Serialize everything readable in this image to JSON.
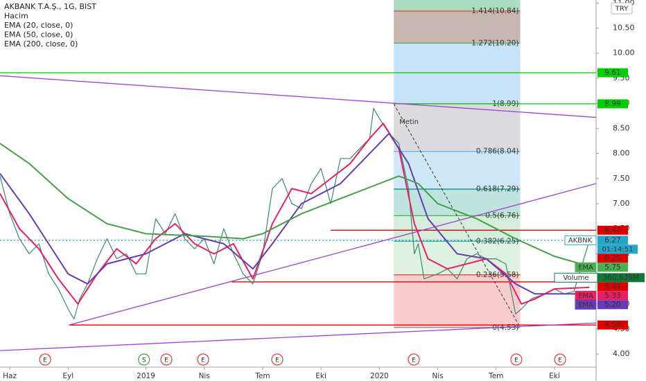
{
  "chart_data": {
    "type": "line",
    "legend": [
      "AKBANK T.A.Ş., 1G, BIST",
      "Hacim",
      "EMA (20, close, 0)",
      "EMA (50, close, 0)",
      "EMA (200, close, 0)"
    ],
    "currency": "TRY",
    "annotation": "Metin",
    "xlim": [
      -0.5,
      30.14
    ],
    "xticks": [
      {
        "value": 0,
        "label": "Haz"
      },
      {
        "value": 3,
        "label": "Eyl"
      },
      {
        "value": 7,
        "label": "2019"
      },
      {
        "value": 10,
        "label": "Nis"
      },
      {
        "value": 13,
        "label": "Tem"
      },
      {
        "value": 16,
        "label": "Eki"
      },
      {
        "value": 19,
        "label": "2020"
      },
      {
        "value": 22,
        "label": "Nis"
      },
      {
        "value": 25,
        "label": "Tem"
      },
      {
        "value": 28,
        "label": "Eki"
      }
    ],
    "ylim": [
      3.74,
      11.06
    ],
    "yticks": [
      {
        "value": 4,
        "label": "4.00"
      },
      {
        "value": 4.5,
        "label": "4.50"
      },
      {
        "value": 5,
        "label": "5.00"
      },
      {
        "value": 5.5,
        "label": "5.50"
      },
      {
        "value": 6,
        "label": "6.00"
      },
      {
        "value": 6.5,
        "label": "6.50"
      },
      {
        "value": 7,
        "label": "7.00"
      },
      {
        "value": 7.5,
        "label": "7.50"
      },
      {
        "value": 8,
        "label": "8.00"
      },
      {
        "value": 8.5,
        "label": "8.50"
      },
      {
        "value": 9,
        "label": "9.00"
      },
      {
        "value": 9.5,
        "label": "9.50"
      },
      {
        "value": 10,
        "label": "10.00"
      },
      {
        "value": 10.5,
        "label": "10.50"
      },
      {
        "value": 11,
        "label": "11.00"
      }
    ],
    "fib": {
      "x": [
        19.74,
        26.24
      ],
      "levels": [
        {
          "value": 10.84,
          "label": "1.414(10.84)"
        },
        {
          "value": 10.2,
          "label": "1.272(10.20)"
        },
        {
          "value": 8.99,
          "label": "1(8.99)"
        },
        {
          "value": 8.04,
          "label": "0.786(8.04)"
        },
        {
          "value": 7.29,
          "label": "0.618(7.29)"
        },
        {
          "value": 6.76,
          "label": "0.5(6.76)"
        },
        {
          "value": 6.25,
          "label": "0.382(6.25)"
        },
        {
          "value": 5.58,
          "label": "0.236(5.58)"
        },
        {
          "value": 4.53,
          "label": "0(4.53)"
        }
      ],
      "zone_colors": [
        "#8fd0ab",
        "#b59d95",
        "#b3daf7",
        "#cfcfd3",
        "#bde0f8",
        "#a9dbd2",
        "#c6e8cf",
        "#d3eed4",
        "#f7bcbc"
      ],
      "line_colors": [
        "#e53935",
        "#4caf50",
        "#787b86",
        "#64b5f6",
        "#00897b",
        "#4caf50",
        "#26a69a",
        "#e53935",
        "#787b86"
      ]
    },
    "hlines": [
      {
        "value": 9.61,
        "x_start": -0.5,
        "color": "#00c800"
      },
      {
        "value": 8.99,
        "x_start": 19.74,
        "color": "#00c800"
      },
      {
        "value": 6.47,
        "x_start": 16.5,
        "color": "#e00000"
      },
      {
        "value": 5.44,
        "x_start": 11.4,
        "color": "#e00000"
      },
      {
        "value": 4.58,
        "x_start": 3.05,
        "color": "#e00000"
      }
    ],
    "last_price_line": {
      "value": 6.27,
      "color": "#26a6c8"
    },
    "trendlines": [
      {
        "x": [
          -0.5,
          30.14
        ],
        "values": [
          9.55,
          8.72
        ],
        "color": "#a040d0"
      },
      {
        "x": [
          3.05,
          30.14
        ],
        "values": [
          4.58,
          7.4
        ],
        "color": "#a040d0"
      },
      {
        "x": [
          -0.5,
          30.14
        ],
        "values": [
          4.07,
          4.62
        ],
        "color": "#a040d0"
      }
    ],
    "series": [
      {
        "color": "#3a8a6a",
        "x": [
          -0.5,
          0,
          0.5,
          1,
          1.5,
          2,
          2.5,
          3,
          3.3,
          3.6,
          4,
          4.5,
          5,
          5.5,
          6,
          6.5,
          7,
          7.5,
          8,
          8.5,
          9,
          9.5,
          10,
          10.5,
          11,
          11.5,
          12,
          12.5,
          13,
          13.5,
          14,
          14.5,
          15,
          15.5,
          16,
          16.5,
          17,
          17.5,
          18,
          18.5,
          18.7,
          19,
          19.5,
          20,
          20.5,
          20.8,
          21,
          21.3,
          22,
          22.5,
          23,
          23.5,
          24,
          24.5,
          25,
          25.5,
          26,
          26.3,
          26.8,
          27.5,
          28,
          28.5,
          29,
          29.8
        ],
        "values": [
          7.55,
          6.8,
          6.3,
          6.0,
          6.2,
          5.6,
          5.3,
          4.9,
          4.7,
          5.1,
          5.4,
          5.9,
          6.3,
          5.9,
          6.0,
          5.6,
          5.6,
          6.7,
          6.4,
          6.8,
          6.3,
          6.1,
          6.3,
          5.8,
          6.5,
          6.0,
          5.6,
          5.4,
          6.0,
          7.3,
          7.5,
          7.0,
          6.9,
          7.4,
          7.7,
          7.0,
          7.9,
          7.9,
          8.1,
          8.3,
          8.9,
          8.7,
          8.4,
          8.2,
          7.3,
          6.0,
          6.2,
          5.5,
          5.6,
          5.7,
          5.5,
          5.9,
          6.0,
          5.9,
          5.9,
          5.8,
          4.8,
          4.9,
          5.1,
          5.2,
          5.3,
          5.2,
          5.25,
          6.27
        ]
      },
      {
        "color": "#e91e63",
        "x": [
          -0.5,
          0.5,
          1.5,
          2.5,
          3.5,
          4.5,
          5.5,
          6.5,
          7.5,
          8.5,
          9.5,
          10.5,
          11.5,
          12.5,
          13.5,
          14.5,
          15.5,
          16.5,
          17.5,
          18.5,
          19.2,
          20,
          20.8,
          21.5,
          22.5,
          23.5,
          24.5,
          25.5,
          26.3,
          27,
          28,
          29.8
        ],
        "values": [
          7.2,
          6.5,
          6.1,
          5.5,
          5.0,
          5.6,
          6.1,
          5.8,
          6.3,
          6.6,
          6.2,
          6.0,
          6.2,
          5.5,
          6.6,
          7.3,
          7.2,
          7.5,
          7.8,
          8.3,
          8.6,
          8.1,
          6.6,
          5.9,
          5.7,
          5.8,
          5.9,
          5.6,
          5.0,
          5.1,
          5.3,
          5.33
        ]
      },
      {
        "color": "#673ab7",
        "x": [
          -0.5,
          1,
          2,
          3,
          4,
          5,
          7,
          9,
          11,
          12.5,
          13.5,
          15,
          17,
          18.5,
          19.5,
          20.5,
          21.5,
          23,
          24.5,
          26,
          27,
          28,
          29.8
        ],
        "values": [
          7.6,
          6.8,
          6.2,
          5.6,
          5.4,
          5.8,
          6.0,
          6.4,
          6.2,
          5.7,
          6.2,
          7.0,
          7.4,
          8.0,
          8.4,
          7.8,
          6.7,
          6.0,
          5.9,
          5.4,
          5.2,
          5.2,
          5.2
        ]
      },
      {
        "color": "#43a047",
        "x": [
          -0.5,
          1,
          3,
          5,
          7,
          10,
          12,
          13,
          15,
          17,
          19,
          20,
          21,
          22,
          24,
          26,
          28,
          29.8
        ],
        "values": [
          8.2,
          7.8,
          7.1,
          6.6,
          6.4,
          6.35,
          6.3,
          6.4,
          6.8,
          7.1,
          7.4,
          7.55,
          7.4,
          7.0,
          6.7,
          6.3,
          5.95,
          5.75
        ]
      }
    ],
    "events": {
      "x": [
        1.82,
        6.9,
        8.05,
        9.94,
        13.75,
        20.77,
        26.04,
        28.29
      ],
      "labels": [
        "E",
        "S",
        "E",
        "E",
        "E",
        "E",
        "E",
        "E"
      ],
      "colors": [
        "#e53935",
        "#43a047",
        "#e53935",
        "#e53935",
        "#e53935",
        "#e53935",
        "#e53935",
        "#e53935"
      ]
    },
    "price_tags": [
      {
        "value": 9.61,
        "label": "9.61",
        "color": "#00d000",
        "text_color": "#000"
      },
      {
        "value": 8.99,
        "label": "8.99",
        "color": "#00d000",
        "text_color": "#000"
      },
      {
        "value": 6.47,
        "label": "6.47",
        "color": "#e00000",
        "text_color": "#fff"
      },
      {
        "name": "AKBNK",
        "value": 6.27,
        "label": "6.27",
        "timer": "01:14:51",
        "color": "#26a6c8",
        "text_color": "#fff"
      },
      {
        "value": 6.25,
        "label": "6.25",
        "color": "#e00000",
        "text_color": "#fff"
      },
      {
        "name": "EMA",
        "value": 5.75,
        "label": "5.75",
        "color": "#4caf50",
        "text_color": "#fff"
      },
      {
        "name": "Volume",
        "label": "360.639M",
        "color": "#0e7a3a",
        "text_color": "#fff"
      },
      {
        "value": 5.44,
        "label": "5.44",
        "color": "#e00000",
        "text_color": "#fff"
      },
      {
        "name": "EMA",
        "value": 5.33,
        "label": "5.33",
        "color": "#e91e63",
        "text_color": "#fff"
      },
      {
        "name": "EMA",
        "value": 5.2,
        "label": "5.20",
        "color": "#673ab7",
        "text_color": "#fff"
      },
      {
        "value": 4.58,
        "label": "4.58",
        "color": "#e00000",
        "text_color": "#fff"
      }
    ]
  }
}
